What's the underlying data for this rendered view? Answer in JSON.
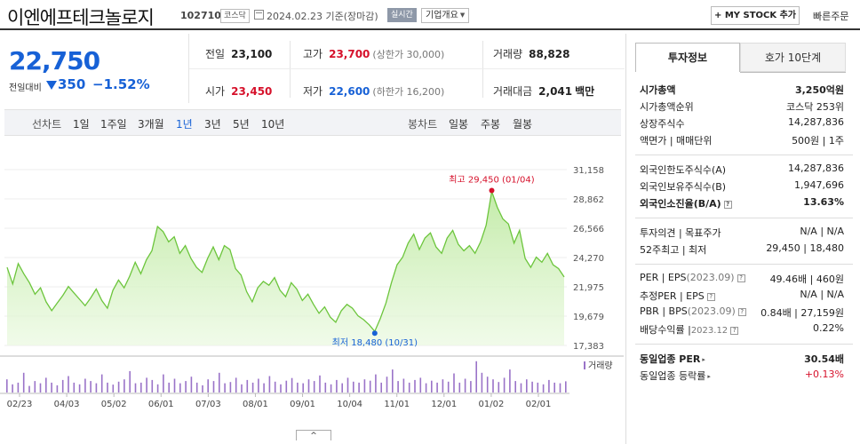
{
  "header": {
    "company": "이엔에프테크놀로지",
    "code": "102710",
    "market": "코스닥",
    "date_info": "2024.02.23  기준(장마감)",
    "realtime_label": "실시간",
    "company_info_label": "기업개요",
    "my_stock_label": "+ MY STOCK 추가",
    "quick_order_label": "빠른주문"
  },
  "price": {
    "current": "22,750",
    "change_label": "전일대비",
    "change_amount": "350",
    "change_percent": "−1.52%"
  },
  "stats": {
    "prev_close_label": "전일",
    "prev_close": "23,100",
    "high_label": "고가",
    "high": "23,700",
    "upper_limit": "(상한가 30,000)",
    "volume_label": "거래량",
    "volume": "88,828",
    "open_label": "시가",
    "open": "23,450",
    "low_label": "저가",
    "low": "22,600",
    "lower_limit": "(하한가 16,200)",
    "trade_value_label": "거래대금",
    "trade_value": "2,041",
    "trade_value_unit": "백만"
  },
  "period_tabs": {
    "line_label": "선차트",
    "line_items": [
      "1일",
      "1주일",
      "3개월",
      "1년",
      "3년",
      "5년",
      "10년"
    ],
    "selected": "1년",
    "candle_label": "봉차트",
    "candle_items": [
      "일봉",
      "주봉",
      "월봉"
    ]
  },
  "chart_data": {
    "type": "area",
    "y_ticks": [
      "31,158",
      "28,862",
      "26,566",
      "24,270",
      "21,975",
      "19,679",
      "17,383"
    ],
    "ylim": [
      17383,
      31158
    ],
    "x_ticks": [
      "02/23",
      "04/03",
      "05/02",
      "06/01",
      "07/03",
      "08/01",
      "09/01",
      "10/04",
      "11/01",
      "12/01",
      "01/02",
      "02/01"
    ],
    "price_points": [
      23500,
      22200,
      23800,
      23000,
      22300,
      21400,
      21900,
      20800,
      20100,
      20700,
      21300,
      22000,
      21500,
      21000,
      20500,
      21100,
      21800,
      20900,
      20300,
      21700,
      22500,
      21900,
      22800,
      23900,
      23000,
      24100,
      24800,
      26700,
      26300,
      25500,
      25900,
      24600,
      25200,
      24200,
      23500,
      23100,
      24200,
      25100,
      24100,
      25200,
      24900,
      23400,
      22900,
      21600,
      20800,
      21900,
      22400,
      22100,
      22700,
      21700,
      21200,
      22300,
      21800,
      20900,
      21400,
      20600,
      19900,
      20400,
      19600,
      19200,
      20100,
      20600,
      20300,
      19700,
      19400,
      19000,
      18480,
      19500,
      20700,
      22300,
      23700,
      24300,
      25400,
      26100,
      24900,
      25800,
      26200,
      25100,
      24600,
      25800,
      26400,
      25300,
      24800,
      25200,
      24600,
      25500,
      26800,
      29450,
      28200,
      27300,
      26900,
      25400,
      26400,
      24200,
      23500,
      24300,
      23900,
      24600,
      23700,
      23400,
      22750
    ],
    "max_label": "최고 29,450 (01/04)",
    "min_label": "최저 18,480 (10/31)",
    "volume_legend": "거래량",
    "volume_points": [
      40,
      25,
      30,
      60,
      20,
      35,
      28,
      45,
      30,
      22,
      38,
      50,
      30,
      25,
      42,
      35,
      28,
      55,
      30,
      24,
      33,
      40,
      65,
      28,
      30,
      45,
      38,
      25,
      55,
      30,
      42,
      28,
      35,
      48,
      30,
      22,
      40,
      35,
      60,
      28,
      32,
      45,
      25,
      38,
      30,
      42,
      28,
      50,
      33,
      25,
      36,
      44,
      30,
      28,
      40,
      35,
      52,
      30,
      25,
      38,
      28,
      45,
      33,
      30,
      40,
      36,
      55,
      30,
      48,
      70,
      35,
      42,
      30,
      38,
      45,
      28,
      36,
      30,
      40,
      33,
      58,
      30,
      42,
      35,
      95,
      60,
      48,
      40,
      32,
      45,
      70,
      35,
      28,
      40,
      33,
      30,
      25,
      38,
      30,
      28,
      34
    ],
    "volume_max": 100
  },
  "toggle_label": "^",
  "right_panel": {
    "tab_active": "투자정보",
    "tab_other": "호가 10단계",
    "rows1": [
      {
        "label": "시가총액",
        "value": "3,250억원",
        "bold": true
      },
      {
        "label": "시가총액순위",
        "value": "코스닥 253위"
      },
      {
        "label": "상장주식수",
        "value": "14,287,836"
      },
      {
        "label": "액면가 | 매매단위",
        "value": "500원 | 1주"
      }
    ],
    "rows2": [
      {
        "label": "외국인한도주식수(A)",
        "value": "14,287,836"
      },
      {
        "label": "외국인보유주식수(B)",
        "value": "1,947,696"
      },
      {
        "label": "외국인소진율(B/A)",
        "value": "13.63%",
        "bold": true
      }
    ],
    "rows3": [
      {
        "label": "투자의견 | 목표주가",
        "value": "N/A | N/A"
      },
      {
        "label": "52주최고 | 최저",
        "value": "29,450 | 18,480"
      }
    ],
    "rows4": [
      {
        "label": "PER | EPS",
        "sub": "(2023.09)",
        "value": "49.46배 | 460원"
      },
      {
        "label": "추정PER | EPS",
        "value": "N/A | N/A"
      },
      {
        "label": "PBR | BPS",
        "sub": "(2023.09)",
        "value": "0.84배 | 27,159원"
      },
      {
        "label": "배당수익률 |",
        "sub": "2023.12",
        "value": "0.22%"
      }
    ],
    "rows5": [
      {
        "label": "동일업종 PER",
        "value": "30.54배",
        "bold": true
      },
      {
        "label": "동일업종 등락률",
        "value": "+0.13%"
      }
    ]
  },
  "colors": {
    "down_blue": "#1761d6",
    "up_red": "#d6112b",
    "line_green": "#6cc53c"
  }
}
